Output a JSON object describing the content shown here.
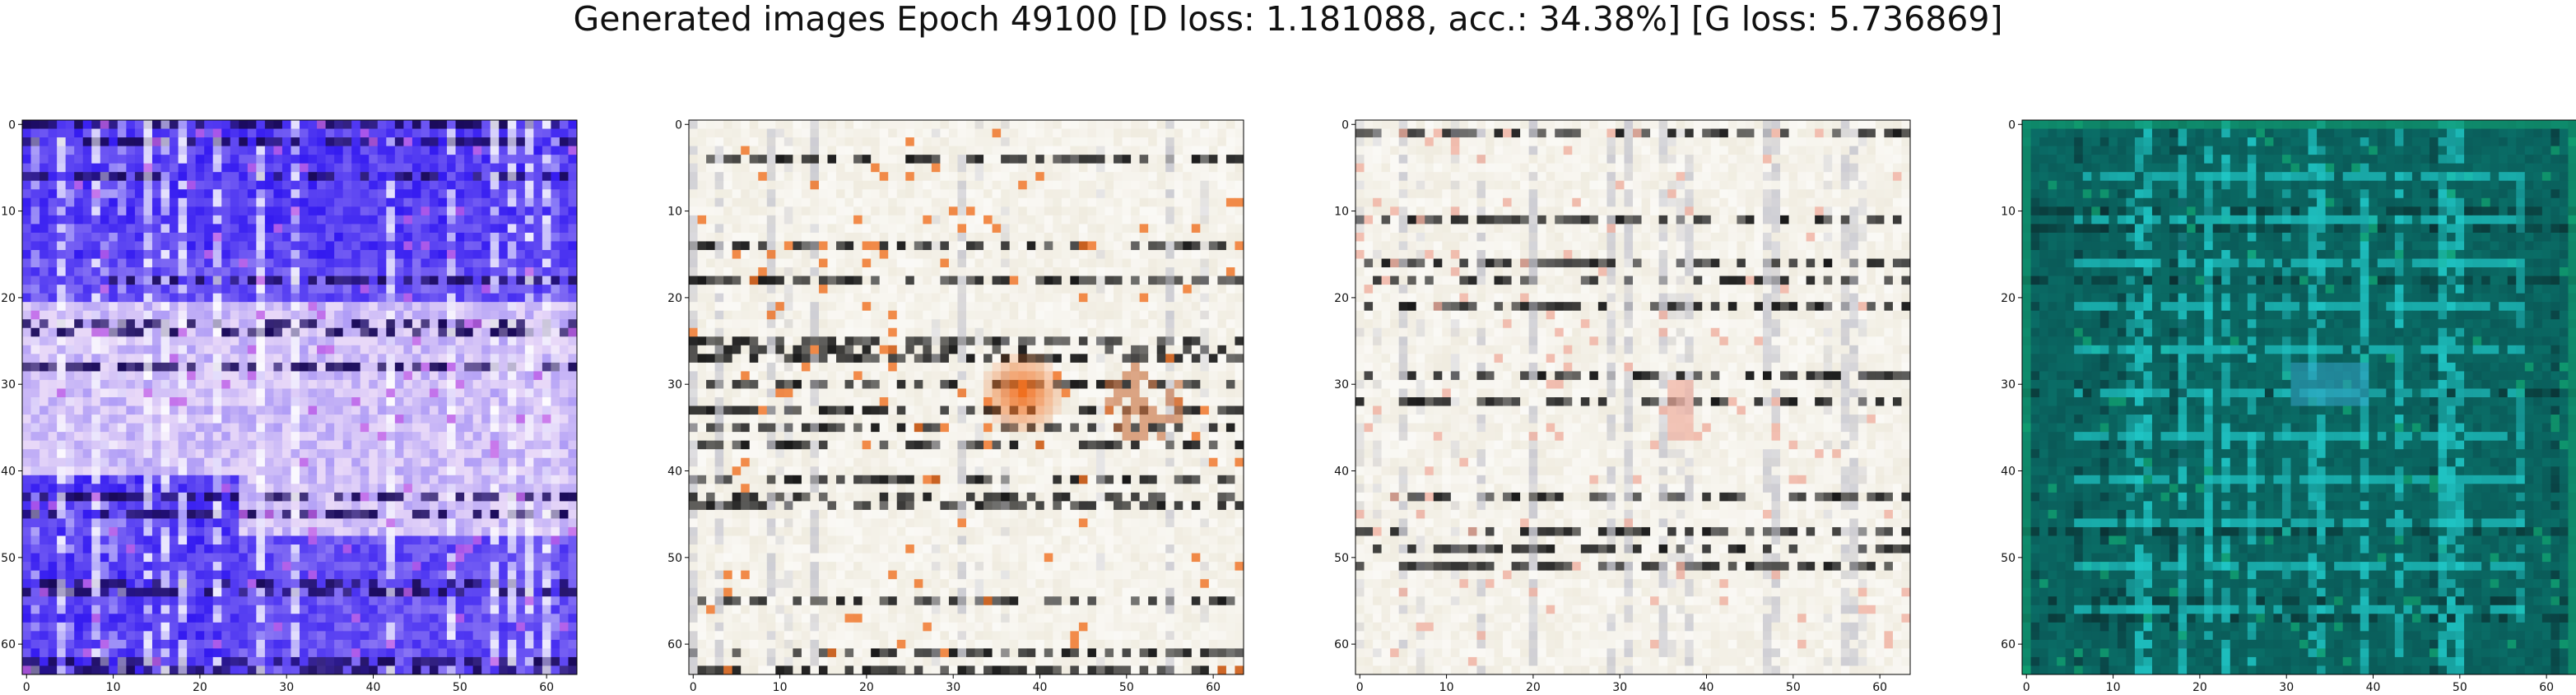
{
  "figure": {
    "title": "Generated images Epoch 49100 [D loss: 1.181088, acc.: 34.38%] [G loss: 5.736869]"
  },
  "axis_ticks": [
    "0",
    "10",
    "20",
    "30",
    "40",
    "50",
    "60"
  ],
  "panels": [
    {
      "name": "generated-image-1",
      "palette": [
        "#2a10f0",
        "#4a30ff",
        "#e8d8f8",
        "#ffffff",
        "#9a7af0",
        "#c060e8",
        "#1a0a5a"
      ],
      "shown_image": "blue-violet noisy generated image with horizontal and vertical line artifacts"
    },
    {
      "name": "generated-image-2",
      "palette": [
        "#f0ece0",
        "#e0dcc8",
        "#ffffff",
        "#c8c8d0",
        "#1a1a1a",
        "#f07020",
        "#f0d8f0"
      ],
      "shown_image": "beige noisy generated image with grid-like dark strokes and an orange-red blob near the center"
    },
    {
      "name": "generated-image-3",
      "palette": [
        "#f0ece0",
        "#e0dcc8",
        "#ffffff",
        "#c8c8d0",
        "#1a1a1a",
        "#f0b0a0",
        "#d8e8e0"
      ],
      "shown_image": "beige noisy generated image with grid-like dark strokes"
    },
    {
      "name": "generated-image-4",
      "palette": [
        "#0a5a58",
        "#0a7a70",
        "#20c8c8",
        "#0a3a3a",
        "#30a0c0",
        "#10a070",
        "#0a2028"
      ],
      "shown_image": "teal-green generated image with a lattice of cyan horizontal and vertical lines"
    }
  ]
}
